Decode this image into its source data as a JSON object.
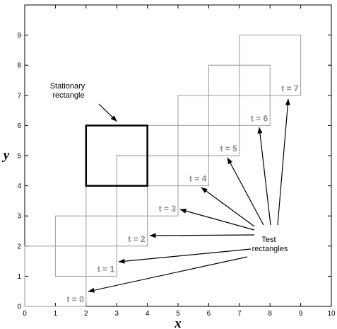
{
  "chart_data": {
    "type": "diagram",
    "xlabel": "x",
    "ylabel": "y",
    "xlim": [
      0,
      10
    ],
    "ylim": [
      0,
      10
    ],
    "x_ticks": [
      "0",
      "1",
      "2",
      "3",
      "4",
      "5",
      "6",
      "7",
      "8",
      "9",
      "10"
    ],
    "y_ticks": [
      "0",
      "1",
      "2",
      "3",
      "4",
      "5",
      "6",
      "7",
      "8",
      "9"
    ],
    "stationary_rectangle": {
      "x0": 2,
      "y0": 4,
      "x1": 4,
      "y1": 6,
      "label_lines": [
        "Stationary",
        "rectangle"
      ]
    },
    "test_rectangles": [
      {
        "label": "t = 0",
        "x0": 0,
        "y0": 0,
        "x1": 2,
        "y1": 2
      },
      {
        "label": "t = 1",
        "x0": 1,
        "y0": 1,
        "x1": 3,
        "y1": 3
      },
      {
        "label": "t = 2",
        "x0": 2,
        "y0": 2,
        "x1": 4,
        "y1": 4
      },
      {
        "label": "t = 3",
        "x0": 3,
        "y0": 3,
        "x1": 5,
        "y1": 5
      },
      {
        "label": "t = 4",
        "x0": 4,
        "y0": 4,
        "x1": 6,
        "y1": 6
      },
      {
        "label": "t = 5",
        "x0": 5,
        "y0": 5,
        "x1": 7,
        "y1": 7
      },
      {
        "label": "t = 6",
        "x0": 6,
        "y0": 6,
        "x1": 8,
        "y1": 8
      },
      {
        "label": "t = 7",
        "x0": 7,
        "y0": 7,
        "x1": 9,
        "y1": 9
      }
    ],
    "test_label_lines": [
      "Test",
      "rectangles"
    ],
    "colors": {
      "test_edge": "#9a9a9a",
      "stationary_edge": "#000000",
      "t_label": "#8c8c8c"
    }
  }
}
